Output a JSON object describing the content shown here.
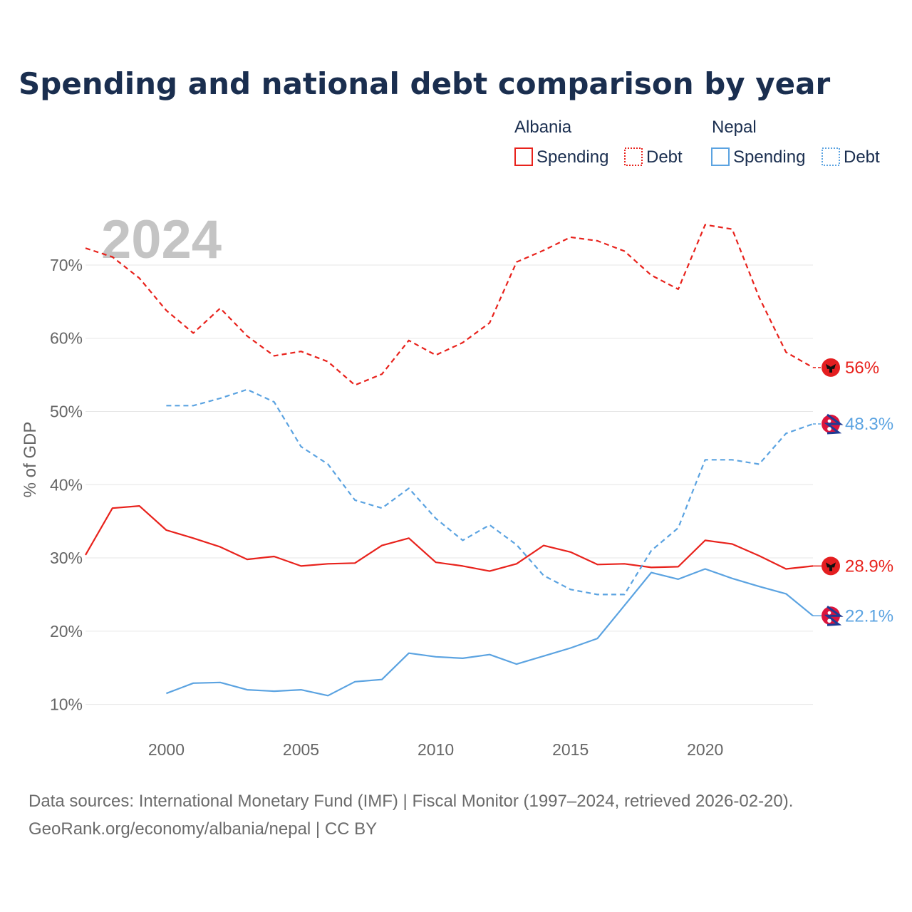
{
  "title": "Spending and national debt comparison by year",
  "legend": {
    "groups": [
      {
        "country": "Albania",
        "items": [
          {
            "label": "Spending",
            "style": "solid",
            "color": "#e8221c"
          },
          {
            "label": "Debt",
            "style": "dotted",
            "color": "#e8221c"
          }
        ]
      },
      {
        "country": "Nepal",
        "items": [
          {
            "label": "Spending",
            "style": "solid",
            "color": "#5ba3e1"
          },
          {
            "label": "Debt",
            "style": "dotted",
            "color": "#5ba3e1"
          }
        ]
      }
    ]
  },
  "year_watermark": "2024",
  "footer": {
    "line1": "Data sources: International Monetary Fund (IMF) | Fiscal Monitor (1997–2024, retrieved 2026-02-20).",
    "line2": "GeoRank.org/economy/albania/nepal | CC BY"
  },
  "colors": {
    "albania": "#e8221c",
    "nepal": "#5ba3e1",
    "title": "#1a2e4f",
    "axis_text": "#666666",
    "grid": "#e6e6e6"
  },
  "chart_data": {
    "type": "line",
    "ylabel": "% of GDP",
    "xlabel": "",
    "xlim": [
      1997,
      2024
    ],
    "ylim": [
      5,
      77
    ],
    "x_ticks": [
      2000,
      2005,
      2010,
      2015,
      2020
    ],
    "y_ticks": [
      10,
      20,
      30,
      40,
      50,
      60,
      70
    ],
    "y_tick_labels": [
      "10%",
      "20%",
      "30%",
      "40%",
      "50%",
      "60%",
      "70%"
    ],
    "series": [
      {
        "name": "Albania Debt",
        "country": "Albania",
        "metric": "Debt",
        "dashed": true,
        "color": "#e8221c",
        "end_label": "56%",
        "x": [
          1997,
          1998,
          1999,
          2000,
          2001,
          2002,
          2003,
          2004,
          2005,
          2006,
          2007,
          2008,
          2009,
          2010,
          2011,
          2012,
          2013,
          2014,
          2015,
          2016,
          2017,
          2018,
          2019,
          2020,
          2021,
          2022,
          2023,
          2024
        ],
        "values": [
          72.3,
          71.1,
          68.2,
          63.8,
          60.7,
          64.1,
          60.3,
          57.6,
          58.2,
          56.8,
          53.6,
          55.1,
          59.7,
          57.7,
          59.4,
          62.1,
          70.4,
          72.0,
          73.8,
          73.3,
          71.9,
          68.6,
          66.7,
          75.5,
          74.9,
          65.6,
          58.1,
          56.0
        ]
      },
      {
        "name": "Albania Spending",
        "country": "Albania",
        "metric": "Spending",
        "dashed": false,
        "color": "#e8221c",
        "end_label": "28.9%",
        "x": [
          1997,
          1998,
          1999,
          2000,
          2001,
          2002,
          2003,
          2004,
          2005,
          2006,
          2007,
          2008,
          2009,
          2010,
          2011,
          2012,
          2013,
          2014,
          2015,
          2016,
          2017,
          2018,
          2019,
          2020,
          2021,
          2022,
          2023,
          2024
        ],
        "values": [
          30.4,
          36.8,
          37.1,
          33.8,
          32.7,
          31.5,
          29.8,
          30.2,
          28.9,
          29.2,
          29.3,
          31.7,
          32.7,
          29.4,
          28.9,
          28.2,
          29.2,
          31.7,
          30.8,
          29.1,
          29.2,
          28.7,
          28.8,
          32.4,
          31.9,
          30.3,
          28.5,
          28.9
        ]
      },
      {
        "name": "Nepal Debt",
        "country": "Nepal",
        "metric": "Debt",
        "dashed": true,
        "color": "#5ba3e1",
        "end_label": "48.3%",
        "x": [
          2000,
          2001,
          2002,
          2003,
          2004,
          2005,
          2006,
          2007,
          2008,
          2009,
          2010,
          2011,
          2012,
          2013,
          2014,
          2015,
          2016,
          2017,
          2018,
          2019,
          2020,
          2021,
          2022,
          2023,
          2024
        ],
        "values": [
          50.8,
          50.8,
          51.8,
          53.0,
          51.3,
          45.2,
          42.8,
          37.9,
          36.8,
          39.5,
          35.4,
          32.4,
          34.5,
          31.8,
          27.6,
          25.7,
          25.0,
          25.0,
          31.0,
          34.1,
          43.4,
          43.4,
          42.8,
          47.0,
          48.3
        ]
      },
      {
        "name": "Nepal Spending",
        "country": "Nepal",
        "metric": "Spending",
        "dashed": false,
        "color": "#5ba3e1",
        "end_label": "22.1%",
        "x": [
          2000,
          2001,
          2002,
          2003,
          2004,
          2005,
          2006,
          2007,
          2008,
          2009,
          2010,
          2011,
          2012,
          2013,
          2014,
          2015,
          2016,
          2017,
          2018,
          2019,
          2020,
          2021,
          2022,
          2023,
          2024
        ],
        "values": [
          11.5,
          12.9,
          13.0,
          12.0,
          11.8,
          12.0,
          11.2,
          13.1,
          13.4,
          17.0,
          16.5,
          16.3,
          16.8,
          15.5,
          16.6,
          17.7,
          19.0,
          23.5,
          28.0,
          27.1,
          28.5,
          27.2,
          26.1,
          25.1,
          22.1
        ]
      }
    ]
  }
}
